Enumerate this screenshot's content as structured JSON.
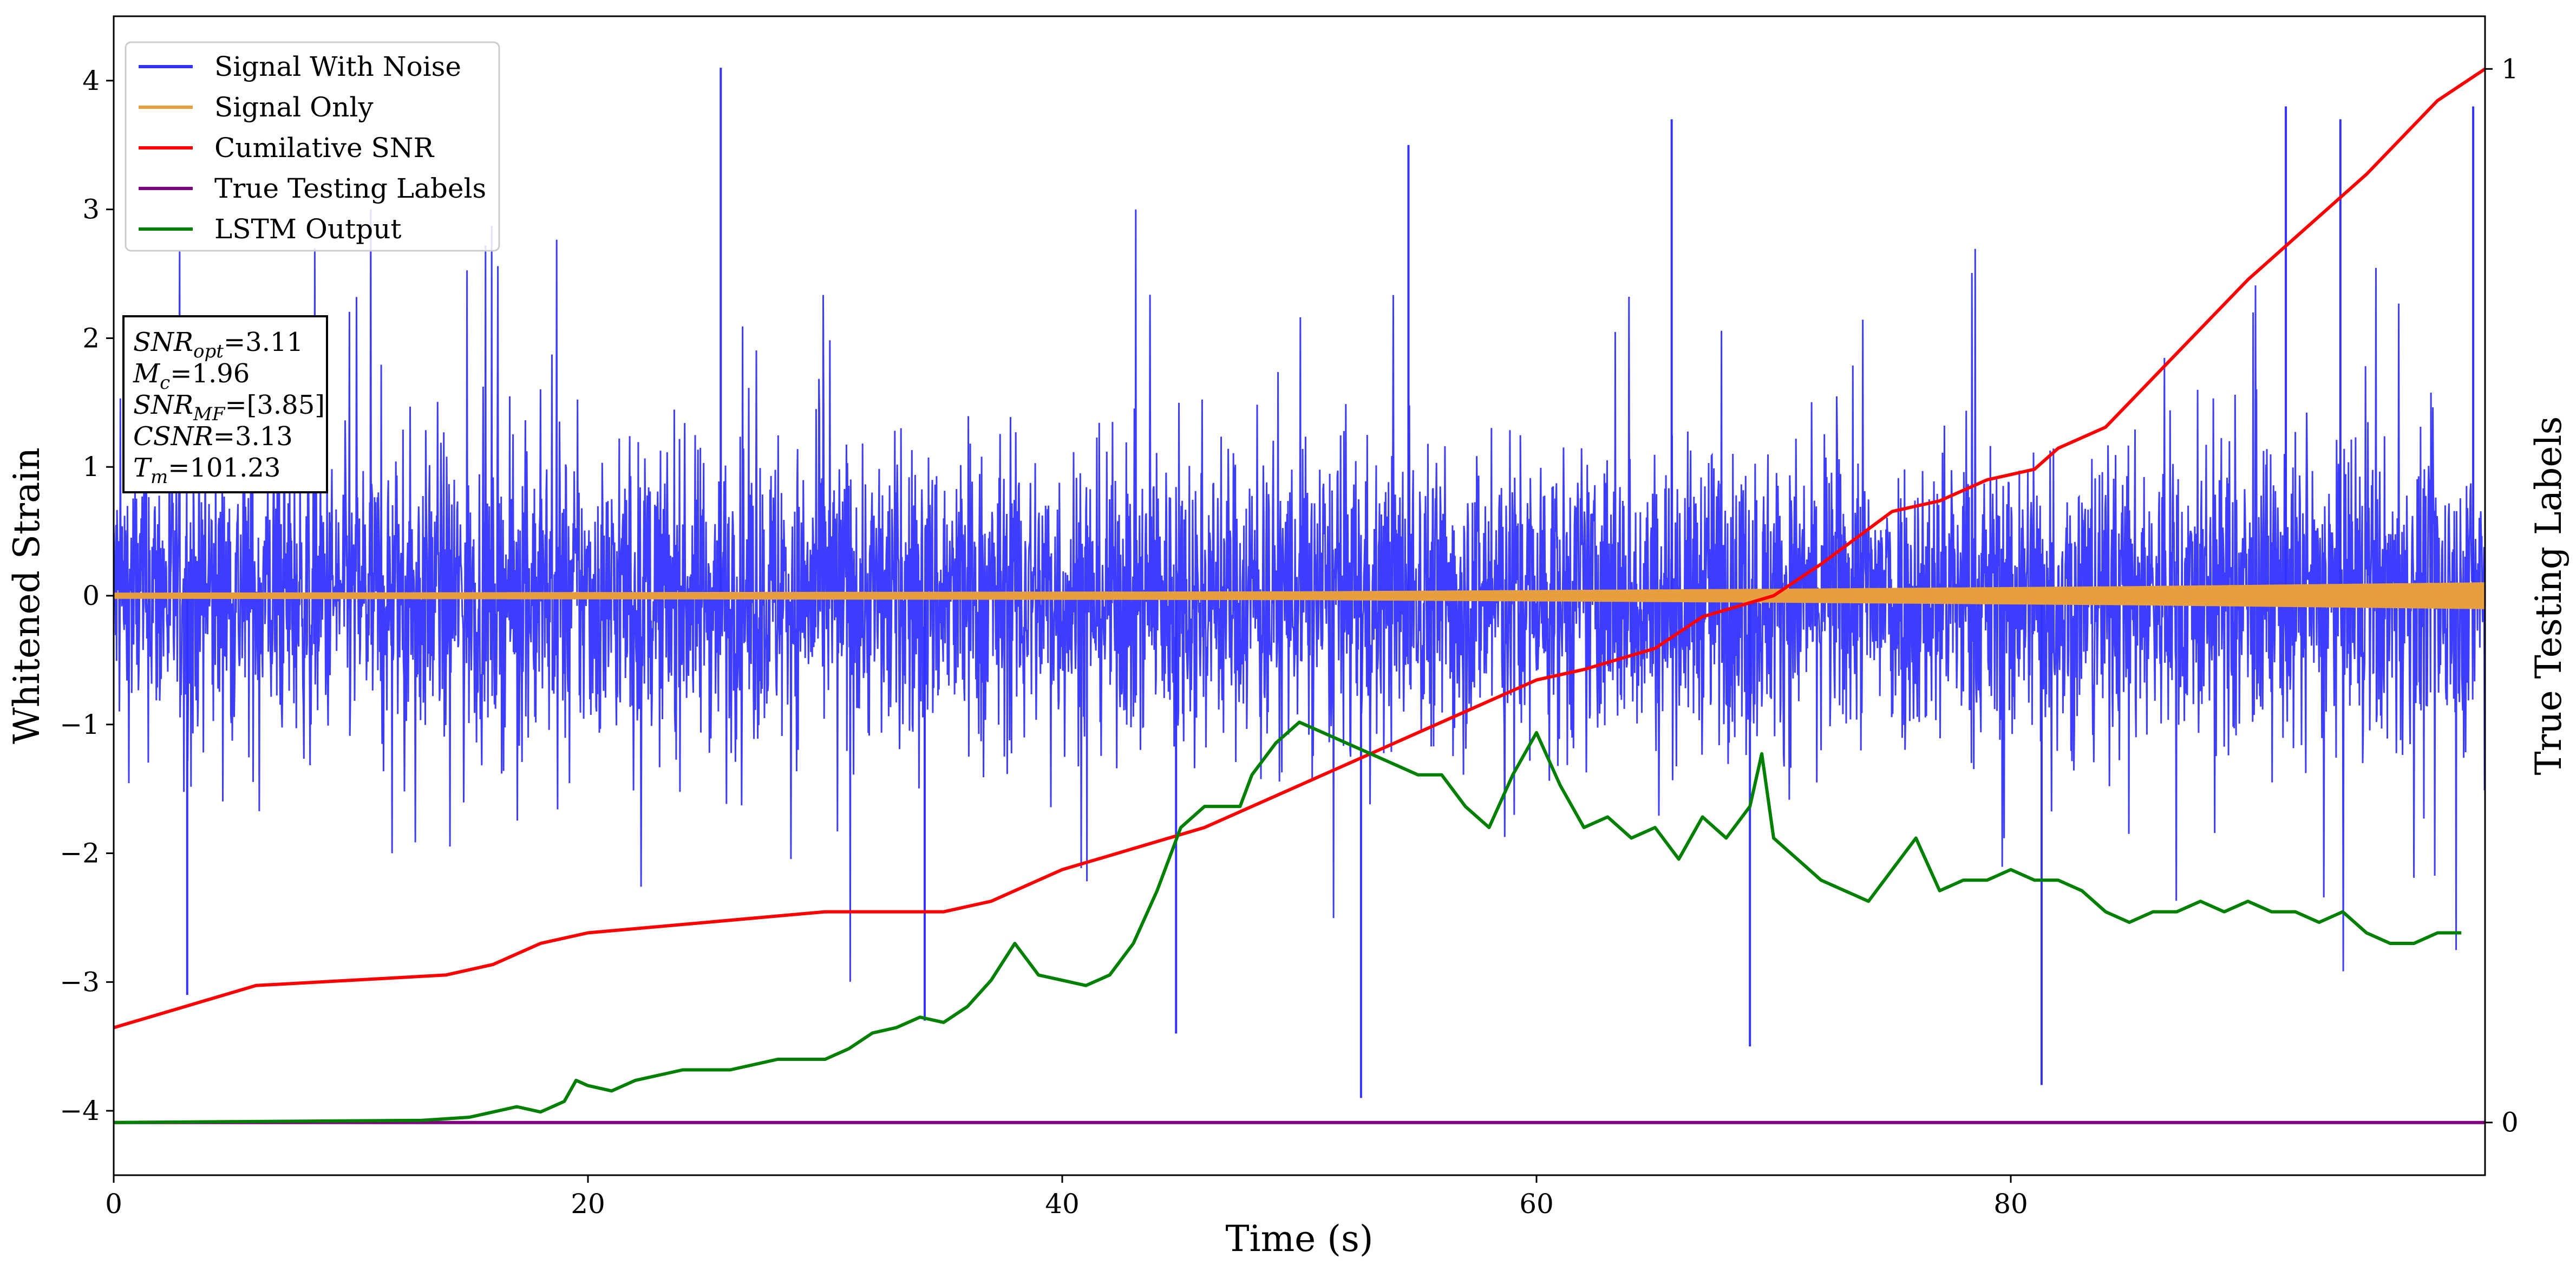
{
  "chart_data": {
    "type": "line",
    "xlabel": "Time (s)",
    "ylabel": "Whitened Strain",
    "y2label": "True Testing Labels",
    "xlim": [
      0,
      100
    ],
    "ylim": [
      -4.5,
      4.5
    ],
    "y2lim": [
      -0.05,
      1.05
    ],
    "x_ticks": [
      0,
      20,
      40,
      60,
      80
    ],
    "y_ticks": [
      -4,
      -3,
      -2,
      -1,
      0,
      1,
      2,
      3,
      4
    ],
    "y2_ticks": [
      0,
      1
    ],
    "grid": false,
    "legend_position": "upper-left",
    "series": [
      {
        "name": "Signal With Noise",
        "axis": "left",
        "color": "#3333ff",
        "style": "dense noise band, approximately -1.5 to +1.5 with spikes",
        "spike_points": [
          {
            "x": 25.6,
            "y": 4.1
          },
          {
            "x": 52.6,
            "y": -3.9
          },
          {
            "x": 81.3,
            "y": -3.8
          },
          {
            "x": 34.2,
            "y": -3.3
          },
          {
            "x": 44.8,
            "y": -3.4
          },
          {
            "x": 69.0,
            "y": -3.5
          },
          {
            "x": 99.5,
            "y": 3.8
          },
          {
            "x": 91.6,
            "y": 3.8
          },
          {
            "x": 3.1,
            "y": -3.1
          },
          {
            "x": 65.7,
            "y": 3.7
          },
          {
            "x": 93.9,
            "y": 3.7
          },
          {
            "x": 54.6,
            "y": 3.5
          }
        ]
      },
      {
        "name": "Signal Only",
        "axis": "left",
        "color": "#e69f3c",
        "style": "thin band around zero, amplitude growing over time",
        "amplitude": [
          {
            "x": 0,
            "y": 0.02
          },
          {
            "x": 50,
            "y": 0.03
          },
          {
            "x": 70,
            "y": 0.05
          },
          {
            "x": 85,
            "y": 0.07
          },
          {
            "x": 100,
            "y": 0.1
          }
        ]
      },
      {
        "name": "Cumilative SNR",
        "axis": "right",
        "color": "#ff0000",
        "x": [
          0,
          3,
          6,
          10,
          14,
          16,
          18,
          20,
          25,
          30,
          35,
          37,
          40,
          43,
          46,
          50,
          55,
          60,
          62,
          65,
          67,
          70,
          72,
          75,
          77,
          79,
          81,
          82,
          84,
          87,
          90,
          92,
          95,
          98,
          100
        ],
        "y": [
          0.09,
          0.11,
          0.13,
          0.135,
          0.14,
          0.15,
          0.17,
          0.18,
          0.19,
          0.2,
          0.2,
          0.21,
          0.24,
          0.26,
          0.28,
          0.32,
          0.37,
          0.42,
          0.43,
          0.45,
          0.48,
          0.5,
          0.53,
          0.58,
          0.59,
          0.61,
          0.62,
          0.64,
          0.66,
          0.73,
          0.8,
          0.84,
          0.9,
          0.97,
          1.0
        ]
      },
      {
        "name": "True Testing Labels",
        "axis": "right",
        "color": "#800080",
        "x": [
          0,
          100
        ],
        "y": [
          0,
          0
        ]
      },
      {
        "name": "LSTM Output",
        "axis": "right",
        "color": "#008000",
        "x": [
          0,
          13,
          15,
          16,
          17,
          18,
          19,
          19.5,
          20,
          21,
          22,
          24,
          26,
          28,
          30,
          31,
          32,
          33,
          34,
          35,
          36,
          37,
          38,
          39,
          40,
          41,
          42,
          43,
          44,
          45,
          46,
          47,
          47.5,
          48,
          49,
          50,
          51,
          52,
          53,
          54,
          55,
          56,
          57,
          58,
          59,
          60,
          61,
          62,
          63,
          64,
          65,
          66,
          67,
          68,
          69,
          69.5,
          70,
          71,
          72,
          73,
          74,
          75,
          76,
          77,
          78,
          79,
          80,
          81,
          82,
          83,
          84,
          85,
          86,
          87,
          88,
          89,
          90,
          91,
          92,
          93,
          94,
          95,
          96,
          97,
          98,
          99
        ],
        "y": [
          0.0,
          0.002,
          0.005,
          0.01,
          0.015,
          0.01,
          0.02,
          0.04,
          0.035,
          0.03,
          0.04,
          0.05,
          0.05,
          0.06,
          0.06,
          0.07,
          0.085,
          0.09,
          0.1,
          0.095,
          0.11,
          0.135,
          0.17,
          0.14,
          0.135,
          0.13,
          0.14,
          0.17,
          0.22,
          0.28,
          0.3,
          0.3,
          0.3,
          0.33,
          0.36,
          0.38,
          0.37,
          0.36,
          0.35,
          0.34,
          0.33,
          0.33,
          0.3,
          0.28,
          0.33,
          0.37,
          0.32,
          0.28,
          0.29,
          0.27,
          0.28,
          0.25,
          0.29,
          0.27,
          0.3,
          0.35,
          0.27,
          0.25,
          0.23,
          0.22,
          0.21,
          0.24,
          0.27,
          0.22,
          0.23,
          0.23,
          0.24,
          0.23,
          0.23,
          0.22,
          0.2,
          0.19,
          0.2,
          0.2,
          0.21,
          0.2,
          0.21,
          0.2,
          0.2,
          0.19,
          0.2,
          0.18,
          0.17,
          0.17,
          0.18,
          0.18
        ]
      }
    ],
    "annotation_box": {
      "lines": [
        {
          "name": "SNR",
          "sub": "opt",
          "value": "=3.11"
        },
        {
          "name": "M",
          "sub": "c",
          "value": "=1.96"
        },
        {
          "name": "SNR",
          "sub": "MF",
          "value": "=[3.85]"
        },
        {
          "name": "CSNR",
          "sub": "",
          "value": "=3.13"
        },
        {
          "name": "T",
          "sub": "m",
          "value": "=101.23"
        }
      ]
    }
  }
}
